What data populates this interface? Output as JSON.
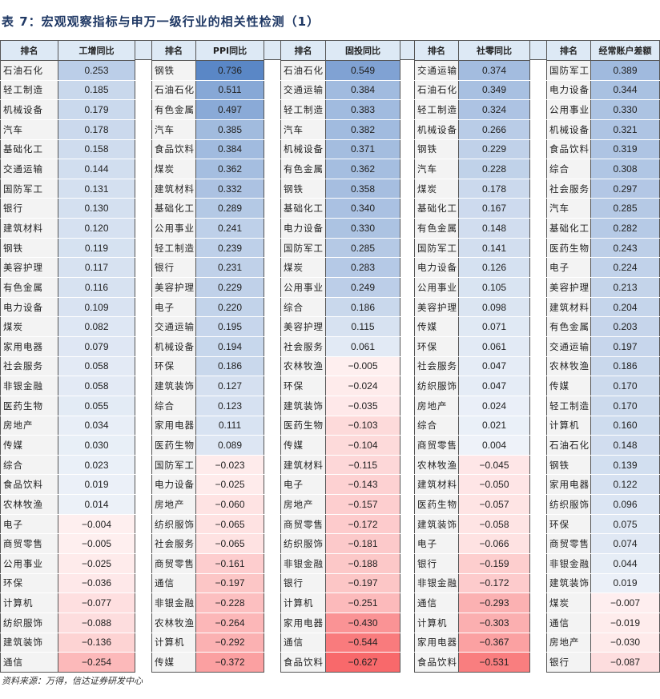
{
  "title": "表 7：宏观观察指标与申万一级行业的相关性检测（1）",
  "source": "资料来源：万得，信达证券研发中心",
  "colors": {
    "header_bg": "#dde9f5",
    "positive_max": "#5a87c6",
    "negative_max": "#f8696b",
    "name_bg": "#f3f3f3"
  },
  "scale": {
    "max": 0.736,
    "min": -0.627
  },
  "groups": [
    {
      "rank_header": "排名",
      "value_header": "工增同比",
      "rows": [
        [
          "石油石化",
          "0.253"
        ],
        [
          "轻工制造",
          "0.185"
        ],
        [
          "机械设备",
          "0.179"
        ],
        [
          "汽车",
          "0.178"
        ],
        [
          "基础化工",
          "0.158"
        ],
        [
          "交通运输",
          "0.144"
        ],
        [
          "国防军工",
          "0.131"
        ],
        [
          "银行",
          "0.130"
        ],
        [
          "建筑材料",
          "0.120"
        ],
        [
          "钢铁",
          "0.119"
        ],
        [
          "美容护理",
          "0.117"
        ],
        [
          "有色金属",
          "0.116"
        ],
        [
          "电力设备",
          "0.109"
        ],
        [
          "煤炭",
          "0.082"
        ],
        [
          "家用电器",
          "0.079"
        ],
        [
          "社会服务",
          "0.058"
        ],
        [
          "非银金融",
          "0.058"
        ],
        [
          "医药生物",
          "0.055"
        ],
        [
          "房地产",
          "0.034"
        ],
        [
          "传媒",
          "0.030"
        ],
        [
          "综合",
          "0.023"
        ],
        [
          "食品饮料",
          "0.019"
        ],
        [
          "农林牧渔",
          "0.014"
        ],
        [
          "电子",
          "−0.004"
        ],
        [
          "商贸零售",
          "−0.005"
        ],
        [
          "公用事业",
          "−0.025"
        ],
        [
          "环保",
          "−0.036"
        ],
        [
          "计算机",
          "−0.077"
        ],
        [
          "纺织服饰",
          "−0.088"
        ],
        [
          "建筑装饰",
          "−0.136"
        ],
        [
          "通信",
          "−0.254"
        ]
      ]
    },
    {
      "rank_header": "排名",
      "value_header": "PPI同比",
      "rows": [
        [
          "钢铁",
          "0.736"
        ],
        [
          "石油石化",
          "0.511"
        ],
        [
          "有色金属",
          "0.497"
        ],
        [
          "汽车",
          "0.385"
        ],
        [
          "食品饮料",
          "0.384"
        ],
        [
          "煤炭",
          "0.362"
        ],
        [
          "建筑材料",
          "0.332"
        ],
        [
          "基础化工",
          "0.289"
        ],
        [
          "公用事业",
          "0.241"
        ],
        [
          "轻工制造",
          "0.239"
        ],
        [
          "银行",
          "0.231"
        ],
        [
          "美容护理",
          "0.229"
        ],
        [
          "电子",
          "0.220"
        ],
        [
          "交通运输",
          "0.195"
        ],
        [
          "机械设备",
          "0.194"
        ],
        [
          "环保",
          "0.186"
        ],
        [
          "建筑装饰",
          "0.127"
        ],
        [
          "综合",
          "0.123"
        ],
        [
          "家用电器",
          "0.111"
        ],
        [
          "医药生物",
          "0.089"
        ],
        [
          "国防军工",
          "−0.023"
        ],
        [
          "电力设备",
          "−0.025"
        ],
        [
          "房地产",
          "−0.060"
        ],
        [
          "纺织服饰",
          "−0.065"
        ],
        [
          "社会服务",
          "−0.065"
        ],
        [
          "商贸零售",
          "−0.161"
        ],
        [
          "通信",
          "−0.197"
        ],
        [
          "非银金融",
          "−0.228"
        ],
        [
          "农林牧渔",
          "−0.264"
        ],
        [
          "计算机",
          "−0.292"
        ],
        [
          "传媒",
          "−0.372"
        ]
      ]
    },
    {
      "rank_header": "排名",
      "value_header": "固投同比",
      "rows": [
        [
          "石油石化",
          "0.549"
        ],
        [
          "交通运输",
          "0.384"
        ],
        [
          "轻工制造",
          "0.383"
        ],
        [
          "汽车",
          "0.382"
        ],
        [
          "机械设备",
          "0.371"
        ],
        [
          "有色金属",
          "0.362"
        ],
        [
          "钢铁",
          "0.358"
        ],
        [
          "基础化工",
          "0.340"
        ],
        [
          "电力设备",
          "0.330"
        ],
        [
          "国防军工",
          "0.285"
        ],
        [
          "煤炭",
          "0.283"
        ],
        [
          "公用事业",
          "0.249"
        ],
        [
          "综合",
          "0.186"
        ],
        [
          "美容护理",
          "0.115"
        ],
        [
          "社会服务",
          "0.061"
        ],
        [
          "农林牧渔",
          "−0.005"
        ],
        [
          "环保",
          "−0.024"
        ],
        [
          "建筑装饰",
          "−0.035"
        ],
        [
          "医药生物",
          "−0.103"
        ],
        [
          "传媒",
          "−0.104"
        ],
        [
          "建筑材料",
          "−0.115"
        ],
        [
          "电子",
          "−0.143"
        ],
        [
          "房地产",
          "−0.157"
        ],
        [
          "商贸零售",
          "−0.172"
        ],
        [
          "纺织服饰",
          "−0.181"
        ],
        [
          "非银金融",
          "−0.188"
        ],
        [
          "银行",
          "−0.197"
        ],
        [
          "计算机",
          "−0.251"
        ],
        [
          "家用电器",
          "−0.430"
        ],
        [
          "通信",
          "−0.544"
        ],
        [
          "食品饮料",
          "−0.627"
        ]
      ]
    },
    {
      "rank_header": "排名",
      "value_header": "社零同比",
      "rows": [
        [
          "交通运输",
          "0.374"
        ],
        [
          "石油石化",
          "0.349"
        ],
        [
          "轻工制造",
          "0.324"
        ],
        [
          "机械设备",
          "0.266"
        ],
        [
          "钢铁",
          "0.229"
        ],
        [
          "汽车",
          "0.228"
        ],
        [
          "煤炭",
          "0.178"
        ],
        [
          "基础化工",
          "0.167"
        ],
        [
          "有色金属",
          "0.148"
        ],
        [
          "国防军工",
          "0.141"
        ],
        [
          "电力设备",
          "0.126"
        ],
        [
          "公用事业",
          "0.105"
        ],
        [
          "美容护理",
          "0.098"
        ],
        [
          "传媒",
          "0.071"
        ],
        [
          "环保",
          "0.061"
        ],
        [
          "社会服务",
          "0.047"
        ],
        [
          "纺织服饰",
          "0.047"
        ],
        [
          "房地产",
          "0.024"
        ],
        [
          "综合",
          "0.021"
        ],
        [
          "商贸零售",
          "0.004"
        ],
        [
          "农林牧渔",
          "−0.045"
        ],
        [
          "建筑材料",
          "−0.050"
        ],
        [
          "医药生物",
          "−0.057"
        ],
        [
          "建筑装饰",
          "−0.058"
        ],
        [
          "电子",
          "−0.066"
        ],
        [
          "银行",
          "−0.159"
        ],
        [
          "非银金融",
          "−0.172"
        ],
        [
          "通信",
          "−0.293"
        ],
        [
          "计算机",
          "−0.303"
        ],
        [
          "家用电器",
          "−0.367"
        ],
        [
          "食品饮料",
          "−0.531"
        ]
      ]
    },
    {
      "rank_header": "排名",
      "value_header": "经常账户差额",
      "rows": [
        [
          "国防军工",
          "0.389"
        ],
        [
          "电力设备",
          "0.344"
        ],
        [
          "公用事业",
          "0.330"
        ],
        [
          "机械设备",
          "0.321"
        ],
        [
          "食品饮料",
          "0.319"
        ],
        [
          "综合",
          "0.308"
        ],
        [
          "社会服务",
          "0.297"
        ],
        [
          "汽车",
          "0.285"
        ],
        [
          "基础化工",
          "0.282"
        ],
        [
          "医药生物",
          "0.243"
        ],
        [
          "电子",
          "0.224"
        ],
        [
          "美容护理",
          "0.213"
        ],
        [
          "建筑材料",
          "0.204"
        ],
        [
          "有色金属",
          "0.203"
        ],
        [
          "交通运输",
          "0.197"
        ],
        [
          "农林牧渔",
          "0.186"
        ],
        [
          "传媒",
          "0.170"
        ],
        [
          "轻工制造",
          "0.170"
        ],
        [
          "计算机",
          "0.160"
        ],
        [
          "石油石化",
          "0.148"
        ],
        [
          "钢铁",
          "0.139"
        ],
        [
          "家用电器",
          "0.122"
        ],
        [
          "纺织服饰",
          "0.096"
        ],
        [
          "环保",
          "0.075"
        ],
        [
          "商贸零售",
          "0.074"
        ],
        [
          "非银金融",
          "0.044"
        ],
        [
          "建筑装饰",
          "0.019"
        ],
        [
          "煤炭",
          "−0.007"
        ],
        [
          "通信",
          "−0.019"
        ],
        [
          "房地产",
          "−0.030"
        ],
        [
          "银行",
          "−0.087"
        ]
      ]
    }
  ]
}
